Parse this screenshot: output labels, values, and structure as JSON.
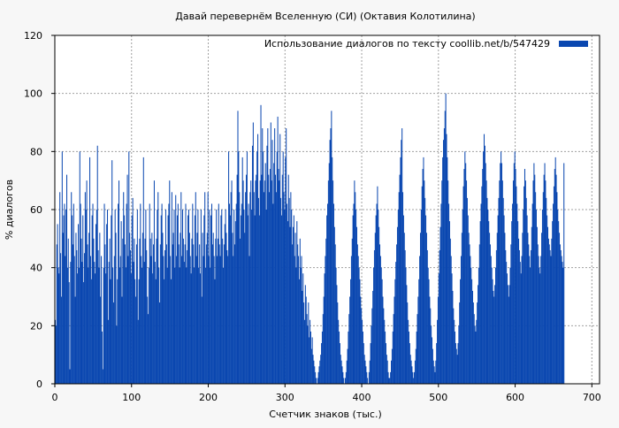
{
  "chart_data": {
    "type": "bar",
    "title": "Давай перевернём Вселенную (СИ) (Октавия Колотилина)",
    "xlabel": "Счетчик знаков (тыс.)",
    "ylabel": "% диалогов",
    "xlim": [
      0,
      710
    ],
    "ylim": [
      0,
      120
    ],
    "x_ticks": [
      0,
      100,
      200,
      300,
      400,
      500,
      600,
      700
    ],
    "y_ticks": [
      0,
      20,
      40,
      60,
      80,
      100,
      120
    ],
    "grid": true,
    "legend_position": "top-right",
    "series": [
      {
        "name": "Использование диалогов по тексту  coollib.net/b/547429",
        "color": "#0a47b0",
        "bin_width": 1,
        "x_start": 0,
        "values": [
          22,
          20,
          48,
          55,
          40,
          38,
          66,
          45,
          30,
          80,
          52,
          58,
          62,
          44,
          60,
          72,
          40,
          50,
          35,
          5,
          42,
          66,
          58,
          48,
          62,
          44,
          30,
          52,
          46,
          38,
          55,
          40,
          80,
          62,
          50,
          42,
          58,
          35,
          45,
          66,
          60,
          70,
          48,
          40,
          52,
          78,
          44,
          36,
          58,
          62,
          50,
          42,
          38,
          55,
          60,
          82,
          46,
          40,
          52,
          30,
          44,
          18,
          5,
          40,
          62,
          48,
          38,
          55,
          60,
          22,
          42,
          50,
          36,
          58,
          77,
          40,
          28,
          44,
          60,
          52,
          20,
          36,
          62,
          70,
          40,
          44,
          56,
          30,
          50,
          66,
          58,
          48,
          40,
          62,
          72,
          44,
          80,
          52,
          46,
          38,
          58,
          64,
          42,
          50,
          36,
          30,
          48,
          60,
          22,
          36,
          50,
          62,
          44,
          40,
          52,
          78,
          42,
          50,
          60,
          46,
          30,
          24,
          40,
          62,
          50,
          44,
          52,
          38,
          48,
          70,
          42,
          36,
          50,
          60,
          66,
          40,
          28,
          48,
          58,
          62,
          52,
          44,
          36,
          46,
          60,
          48,
          40,
          58,
          62,
          70,
          44,
          36,
          66,
          48,
          52,
          60,
          40,
          65,
          44,
          58,
          62,
          48,
          40,
          52,
          66,
          44,
          60,
          50,
          42,
          48,
          62,
          40,
          46,
          58,
          60,
          52,
          44,
          38,
          50,
          62,
          48,
          40,
          58,
          66,
          44,
          52,
          60,
          40,
          48,
          38,
          60,
          30,
          52,
          44,
          58,
          66,
          40,
          48,
          52,
          66,
          44,
          60,
          40,
          58,
          62,
          48,
          52,
          44,
          36,
          50,
          60,
          44,
          50,
          62,
          48,
          44,
          58,
          60,
          50,
          40,
          48,
          55,
          60,
          52,
          46,
          44,
          80,
          62,
          58,
          66,
          70,
          52,
          44,
          60,
          48,
          56,
          62,
          72,
          94,
          80,
          66,
          50,
          58,
          62,
          78,
          70,
          60,
          52,
          66,
          72,
          80,
          58,
          62,
          44,
          66,
          70,
          60,
          82,
          90,
          66,
          58,
          70,
          72,
          80,
          86,
          64,
          58,
          70,
          96,
          72,
          88,
          80,
          66,
          70,
          76,
          60,
          82,
          88,
          72,
          66,
          74,
          90,
          70,
          84,
          62,
          76,
          88,
          72,
          66,
          80,
          92,
          74,
          70,
          86,
          64,
          58,
          72,
          80,
          66,
          60,
          78,
          88,
          62,
          56,
          72,
          64,
          54,
          66,
          60,
          48,
          54,
          58,
          44,
          52,
          40,
          56,
          48,
          44,
          36,
          50,
          40,
          44,
          32,
          38,
          28,
          22,
          34,
          30,
          24,
          20,
          28,
          16,
          22,
          18,
          12,
          16,
          10,
          8,
          6,
          4,
          2,
          0,
          2,
          4,
          6,
          8,
          10,
          14,
          18,
          24,
          30,
          38,
          44,
          50,
          58,
          62,
          70,
          76,
          84,
          88,
          94,
          78,
          70,
          62,
          54,
          48,
          40,
          34,
          28,
          22,
          18,
          14,
          10,
          8,
          6,
          4,
          2,
          0,
          2,
          4,
          8,
          12,
          18,
          24,
          30,
          36,
          44,
          50,
          58,
          62,
          70,
          66,
          60,
          54,
          48,
          44,
          40,
          36,
          30,
          26,
          22,
          18,
          14,
          10,
          8,
          6,
          4,
          2,
          0,
          4,
          8,
          14,
          20,
          26,
          32,
          40,
          46,
          52,
          58,
          62,
          68,
          60,
          54,
          48,
          44,
          40,
          36,
          30,
          26,
          22,
          18,
          14,
          10,
          8,
          4,
          2,
          2,
          4,
          8,
          12,
          18,
          24,
          30,
          36,
          42,
          48,
          54,
          60,
          66,
          72,
          78,
          84,
          88,
          66,
          58,
          52,
          46,
          40,
          34,
          28,
          22,
          18,
          14,
          10,
          8,
          6,
          4,
          2,
          4,
          8,
          12,
          18,
          24,
          30,
          36,
          44,
          52,
          60,
          68,
          74,
          78,
          70,
          64,
          58,
          52,
          46,
          40,
          36,
          30,
          26,
          20,
          16,
          12,
          8,
          6,
          4,
          8,
          14,
          22,
          30,
          38,
          46,
          54,
          62,
          70,
          78,
          84,
          88,
          94,
          100,
          86,
          78,
          70,
          62,
          56,
          50,
          44,
          38,
          32,
          26,
          22,
          18,
          14,
          12,
          10,
          14,
          20,
          28,
          36,
          44,
          52,
          60,
          68,
          74,
          80,
          76,
          70,
          64,
          58,
          52,
          48,
          44,
          40,
          36,
          32,
          28,
          24,
          20,
          18,
          22,
          28,
          34,
          40,
          48,
          56,
          62,
          68,
          74,
          80,
          86,
          82,
          76,
          70,
          64,
          60,
          56,
          52,
          48,
          44,
          40,
          36,
          32,
          30,
          34,
          40,
          46,
          52,
          58,
          64,
          70,
          76,
          80,
          76,
          70,
          64,
          58,
          52,
          46,
          42,
          38,
          34,
          30,
          34,
          40,
          48,
          56,
          62,
          70,
          76,
          80,
          74,
          68,
          62,
          56,
          50,
          46,
          42,
          38,
          44,
          52,
          60,
          68,
          74,
          70,
          64,
          58,
          52,
          48,
          44,
          40,
          46,
          54,
          62,
          70,
          76,
          72,
          66,
          60,
          54,
          48,
          44,
          40,
          38,
          44,
          52,
          60,
          66,
          72,
          76,
          70,
          64,
          58,
          54,
          50,
          48,
          46,
          44,
          50,
          56,
          62,
          68,
          74,
          78,
          72,
          66,
          60,
          56,
          52,
          48,
          46,
          44,
          42,
          40,
          76
        ]
      }
    ]
  }
}
